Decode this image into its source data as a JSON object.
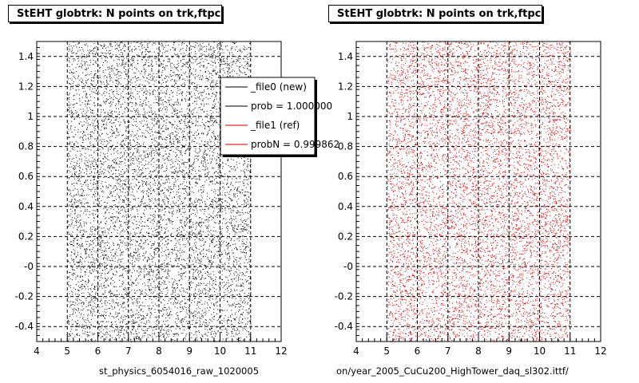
{
  "chart_data": [
    {
      "type": "scatter",
      "title": "StEHT globtrk: N points on trk,ftpc",
      "xlabel": "st_physics_6054016_raw_1020005",
      "ylabel": "",
      "xlim": [
        4,
        12
      ],
      "ylim": [
        -0.5,
        1.5
      ],
      "x_ticks": [
        "4",
        "5",
        "6",
        "7",
        "8",
        "9",
        "10",
        "11",
        "12"
      ],
      "y_ticks": [
        "-0.4",
        "-0.2",
        "-0",
        "0.2",
        "0.4",
        "0.6",
        "0.8",
        "1",
        "1.2",
        "1.4"
      ],
      "grid": true,
      "series": [
        {
          "name": "_file0 (new)",
          "color": "#000000",
          "x_range": [
            5,
            11
          ],
          "y_range": [
            -0.5,
            1.5
          ],
          "points": 8000
        }
      ],
      "legend": {
        "placement": "top-right",
        "entries": [
          {
            "label": "_file0 (new)",
            "color": "#000000"
          },
          {
            "label": "prob = 1.000000",
            "color": "#000000"
          },
          {
            "label": "_file1 (ref)",
            "color": "#cc0000"
          },
          {
            "label": "probN = 0.999862",
            "color": "#cc0000"
          }
        ]
      }
    },
    {
      "type": "scatter",
      "title": "StEHT globtrk: N points on trk,ftpc",
      "xlabel": "on/year_2005_CuCu200_HighTower_daq_sl302.ittf/",
      "ylabel": "",
      "xlim": [
        4,
        12
      ],
      "ylim": [
        -0.5,
        1.5
      ],
      "x_ticks": [
        "4",
        "5",
        "6",
        "7",
        "8",
        "9",
        "10",
        "11",
        "12"
      ],
      "y_ticks": [
        "-0.4",
        "-0.2",
        "-0",
        "0.2",
        "0.4",
        "0.6",
        "0.8",
        "1",
        "1.2",
        "1.4"
      ],
      "grid": true,
      "series": [
        {
          "name": "_file1 (ref)",
          "color": "#cc0000",
          "x_range": [
            5,
            11
          ],
          "y_range": [
            -0.5,
            1.5
          ],
          "points": 8000
        }
      ]
    }
  ]
}
